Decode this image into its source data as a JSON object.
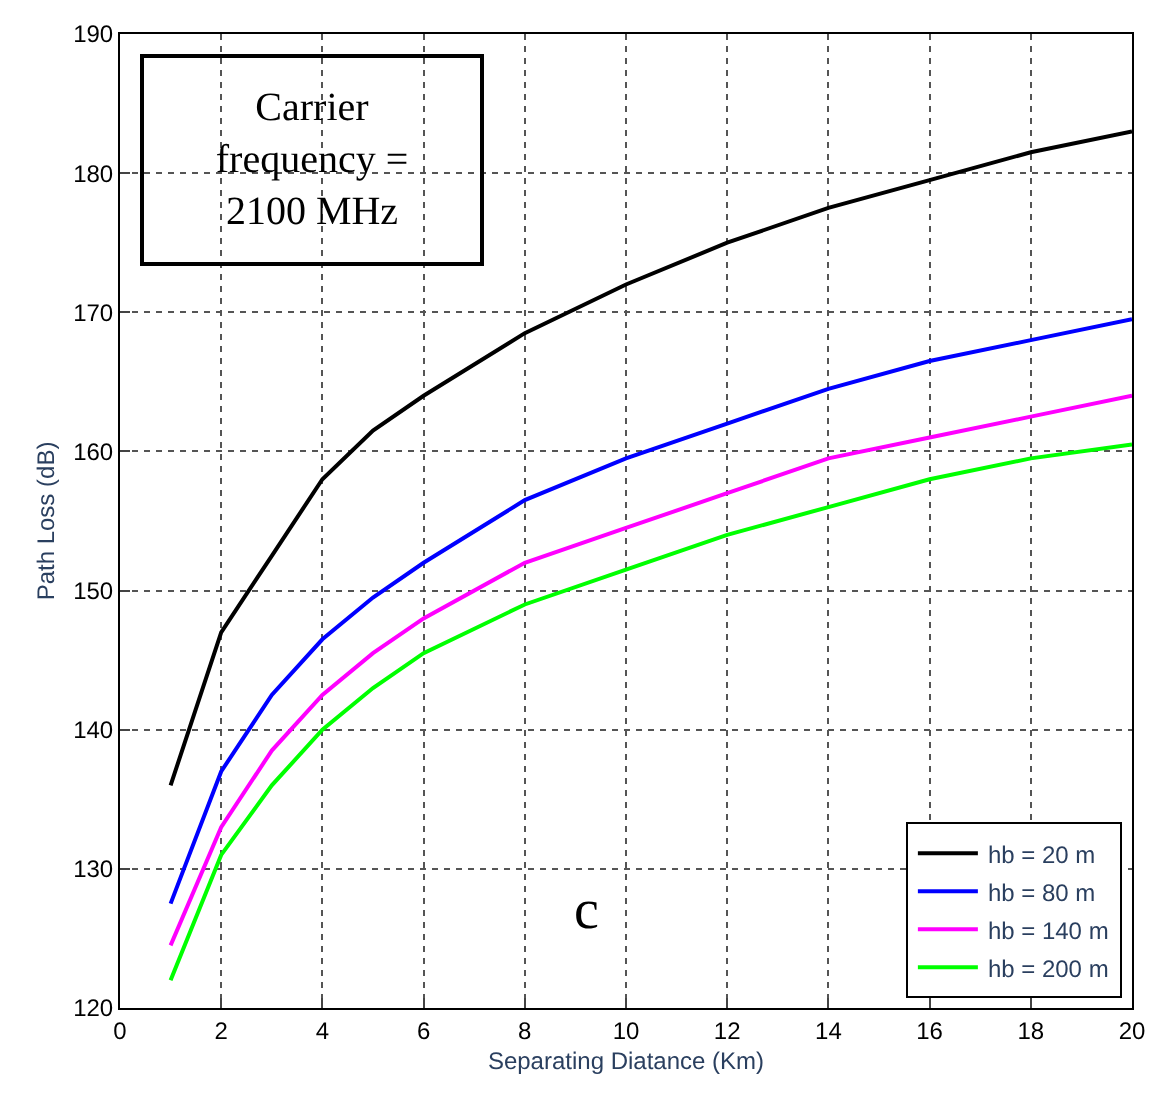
{
  "chart_data": {
    "type": "line",
    "xlabel": "Separating Diatance (Km)",
    "ylabel": "Path Loss (dB)",
    "x": [
      1,
      2,
      3,
      4,
      5,
      6,
      8,
      10,
      12,
      14,
      16,
      18,
      20
    ],
    "series": [
      {
        "name": "hb = 20 m",
        "color": "#000000",
        "values": [
          136,
          147,
          152.5,
          158,
          161.5,
          164,
          168.5,
          172,
          175,
          177.5,
          179.5,
          181.5,
          183
        ]
      },
      {
        "name": "hb = 80 m",
        "color": "#0000ff",
        "values": [
          127.5,
          137,
          142.5,
          146.5,
          149.5,
          152,
          156.5,
          159.5,
          162,
          164.5,
          166.5,
          168,
          169.5
        ]
      },
      {
        "name": "hb = 140 m",
        "color": "#ff00ff",
        "values": [
          124.5,
          133,
          138.5,
          142.5,
          145.5,
          148,
          152,
          154.5,
          157,
          159.5,
          161,
          162.5,
          164
        ]
      },
      {
        "name": "hb = 200 m",
        "color": "#00ff00",
        "values": [
          122,
          131,
          136,
          140,
          143,
          145.5,
          149,
          151.5,
          154,
          156,
          158,
          159.5,
          160.5
        ]
      }
    ],
    "xlim": [
      0,
      20
    ],
    "xticks": [
      0,
      2,
      4,
      6,
      8,
      10,
      12,
      14,
      16,
      18,
      20
    ],
    "ylim": [
      120,
      190
    ],
    "yticks": [
      120,
      130,
      140,
      150,
      160,
      170,
      180,
      190
    ],
    "grid": true,
    "legend": "bottom right",
    "marker": "none",
    "line_style": "solid",
    "annotations": [
      "Carrier frequency = 2100 MHz",
      "c"
    ]
  }
}
